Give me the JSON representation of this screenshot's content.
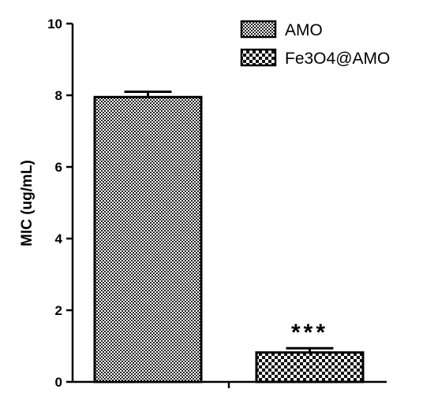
{
  "chart_data": {
    "type": "bar",
    "title": "",
    "xlabel": "",
    "ylabel": "MIC (ug/mL)",
    "ylim": [
      0,
      10
    ],
    "yticks": [
      "0",
      "2",
      "4",
      "6",
      "8",
      "10"
    ],
    "grid": false,
    "legend_position": "top-right",
    "series": [
      {
        "name": "AMO",
        "value": 7.95,
        "error": 0.15,
        "pattern": "fine-checker"
      },
      {
        "name": "Fe3O4@AMO",
        "value": 0.82,
        "error": 0.12,
        "pattern": "coarse-checker"
      }
    ],
    "annotations": [
      {
        "series_index": 1,
        "text": "***"
      }
    ]
  }
}
